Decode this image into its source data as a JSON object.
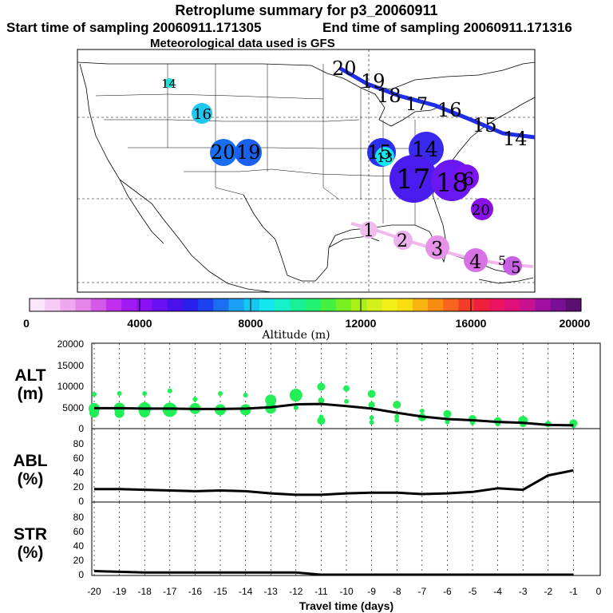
{
  "header": {
    "title": "Retroplume summary for p3_20060911",
    "start_time": "Start time of sampling 20060911.171305",
    "end_time": "End time of sampling 20060911.171316",
    "met_data": "Meteorological data used is GFS"
  },
  "colors": {
    "track_high": "#1f2fe6",
    "track_low": "#f2b8ec",
    "altitude_dots": "#22ee55",
    "line": "#000000"
  },
  "colorbar": {
    "ticks": [
      "0",
      "4000",
      "8000",
      "12000",
      "16000",
      "20000"
    ],
    "label": "Altitude (m)",
    "colors": [
      "#fbe6fb",
      "#f6caf5",
      "#efa7ee",
      "#e584ea",
      "#d658ea",
      "#c030ee",
      "#a11af2",
      "#8a10f5",
      "#6a10f4",
      "#4a10ee",
      "#2a20ec",
      "#1a40f0",
      "#1a6ef0",
      "#1aa0f2",
      "#14c8f2",
      "#14e6f0",
      "#16f0c8",
      "#18f096",
      "#22f070",
      "#44f040",
      "#78f020",
      "#a8f018",
      "#d2f01a",
      "#f0f018",
      "#f8dc14",
      "#f8b410",
      "#f88c10",
      "#f8641e",
      "#f43c2a",
      "#f0203c",
      "#ec1460",
      "#e0107a",
      "#c81090",
      "#a010a0",
      "#781096",
      "#5a1070"
    ]
  },
  "map_labels": {
    "northeast": [
      "20",
      "19",
      "18",
      "17",
      "16",
      "15",
      "14"
    ],
    "southwest": [
      "1",
      "2",
      "3",
      "4",
      "5",
      "5"
    ],
    "west": [
      "14",
      "16",
      "20",
      "19"
    ],
    "central": [
      "15",
      "13",
      "14",
      "17",
      "18",
      "6",
      "20"
    ]
  },
  "chart_data": [
    {
      "type": "line",
      "panel": "ALT",
      "ylabel": "ALT (m)",
      "title": "Altitude",
      "yticks": [
        "20000",
        "15000",
        "10000",
        "5000",
        "0"
      ],
      "ylim": [
        0,
        20000
      ],
      "x": [
        -20,
        -19,
        -18,
        -17,
        -16,
        -15,
        -14,
        -13,
        -12,
        -11,
        -10,
        -9,
        -8,
        -7,
        -6,
        -5,
        -4,
        -3,
        -2,
        -1
      ],
      "mean": [
        4700,
        4700,
        4600,
        4600,
        4500,
        4500,
        4600,
        4900,
        5600,
        5700,
        5200,
        4600,
        3600,
        2700,
        2100,
        1800,
        1400,
        1200,
        700,
        600
      ],
      "dots": [
        [
          -20,
          4600
        ],
        [
          -20,
          8000
        ],
        [
          -20,
          3600
        ],
        [
          -19,
          4700
        ],
        [
          -19,
          8200
        ],
        [
          -19,
          3500
        ],
        [
          -18,
          4600
        ],
        [
          -18,
          8200
        ],
        [
          -18,
          3800
        ],
        [
          -17,
          4300
        ],
        [
          -17,
          8800
        ],
        [
          -16,
          4600
        ],
        [
          -16,
          6800
        ],
        [
          -15,
          4300
        ],
        [
          -15,
          8200
        ],
        [
          -14,
          4300
        ],
        [
          -14,
          7800
        ],
        [
          -13,
          4700
        ],
        [
          -13,
          6600
        ],
        [
          -12,
          4800
        ],
        [
          -12,
          7800
        ],
        [
          -11,
          9800
        ],
        [
          -11,
          6500
        ],
        [
          -11,
          2600
        ],
        [
          -11,
          1700
        ],
        [
          -10,
          9400
        ],
        [
          -10,
          6300
        ],
        [
          -9,
          8100
        ],
        [
          -9,
          5500
        ],
        [
          -9,
          2400
        ],
        [
          -9,
          1300
        ],
        [
          -8,
          5500
        ],
        [
          -8,
          2700
        ],
        [
          -8,
          1800
        ],
        [
          -7,
          2500
        ],
        [
          -7,
          4000
        ],
        [
          -6,
          3300
        ],
        [
          -6,
          1400
        ],
        [
          -5,
          2100
        ],
        [
          -5,
          1200
        ],
        [
          -4,
          1600
        ],
        [
          -4,
          900
        ],
        [
          -3,
          1700
        ],
        [
          -3,
          900
        ],
        [
          -2,
          900
        ],
        [
          -1,
          1100
        ],
        [
          -1,
          500
        ]
      ]
    },
    {
      "type": "line",
      "panel": "ABL",
      "ylabel": "ABL (%)",
      "yticks": [
        "80",
        "60",
        "40",
        "20",
        "0"
      ],
      "ylim": [
        0,
        100
      ],
      "x": [
        -20,
        -19,
        -18,
        -17,
        -16,
        -15,
        -14,
        -13,
        -12,
        -11,
        -10,
        -9,
        -8,
        -7,
        -6,
        -5,
        -4,
        -3,
        -2,
        -1
      ],
      "values": [
        17,
        17,
        16,
        15,
        14,
        15,
        14,
        11,
        9,
        9,
        11,
        12,
        12,
        10,
        11,
        13,
        18,
        16,
        36,
        43
      ]
    },
    {
      "type": "line",
      "panel": "STR",
      "ylabel": "STR (%)",
      "yticks": [
        "80",
        "60",
        "40",
        "20",
        "0"
      ],
      "ylim": [
        0,
        100
      ],
      "x": [
        -20,
        -19,
        -18,
        -17,
        -16,
        -15,
        -14,
        -13,
        -12,
        -11,
        -10,
        -9,
        -8,
        -7,
        -6,
        -5,
        -4,
        -3,
        -2,
        -1
      ],
      "values": [
        5,
        4,
        3,
        3,
        3,
        3,
        3,
        3,
        3,
        0,
        0,
        0,
        0,
        0,
        0,
        0,
        0,
        0,
        0,
        0
      ]
    }
  ],
  "xaxis": {
    "label": "Travel time (days)",
    "ticks": [
      "-20",
      "-19",
      "-18",
      "-17",
      "-16",
      "-15",
      "-14",
      "-13",
      "-12",
      "-11",
      "-10",
      "-9",
      "-8",
      "-7",
      "-6",
      "-5",
      "-4",
      "-3",
      "-2",
      "-1",
      "0"
    ]
  },
  "panel_labels": {
    "alt_top": "ALT",
    "alt_bottom": "(m)",
    "abl_top": "ABL",
    "abl_bottom": "(%)",
    "str_top": "STR",
    "str_bottom": "(%)"
  }
}
